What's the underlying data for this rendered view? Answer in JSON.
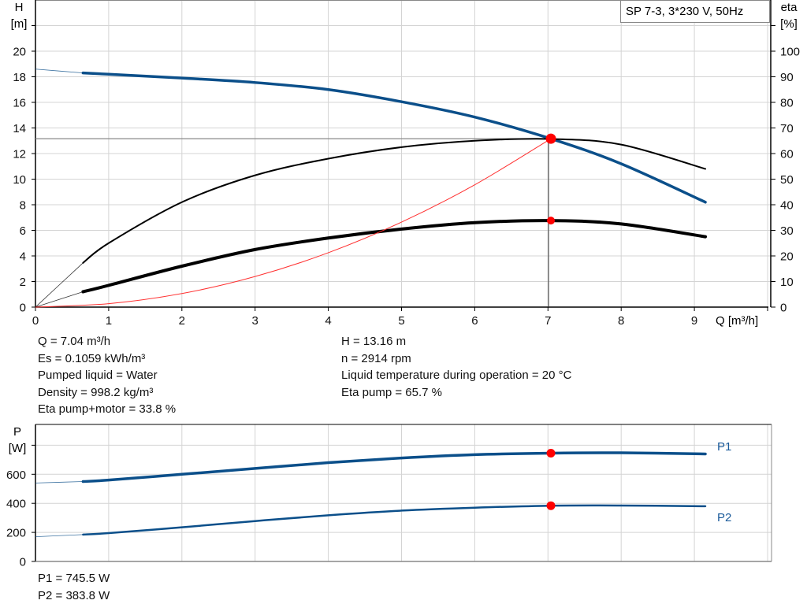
{
  "chart_data": [
    {
      "type": "line",
      "title": "SP 7-3, 3*230 V, 50Hz",
      "xlabel": "Q [m³/h]",
      "ylabel": [
        "H",
        "[m]"
      ],
      "y2label": [
        "eta",
        "[%]"
      ],
      "xlim": [
        0,
        10
      ],
      "ylim": [
        0,
        24
      ],
      "y2lim": [
        0,
        120
      ],
      "grid": true,
      "x_ticks": [
        "0",
        "1",
        "2",
        "3",
        "4",
        "5",
        "6",
        "7",
        "8",
        "9"
      ],
      "y_ticks": [
        "0",
        "2",
        "4",
        "6",
        "8",
        "10",
        "12",
        "14",
        "16",
        "18",
        "20"
      ],
      "y2_ticks": [
        "0",
        "10",
        "20",
        "30",
        "40",
        "50",
        "60",
        "70",
        "80",
        "90",
        "100"
      ],
      "series": [
        {
          "axis": "left",
          "color": "#0b4f8a",
          "width": 3.5,
          "x": [
            0,
            0.65,
            1,
            2,
            3,
            4,
            5,
            6,
            7.04,
            8,
            9.15
          ],
          "y": [
            18.6,
            18.3,
            18.2,
            17.9,
            17.55,
            17.0,
            16.05,
            14.85,
            13.16,
            11.2,
            8.2
          ]
        },
        {
          "axis": "right",
          "color": "#000000",
          "width": 2,
          "x": [
            0,
            0.65,
            1,
            2,
            3,
            4,
            5,
            6,
            7.04,
            8,
            9.15
          ],
          "y": [
            0,
            17.3,
            25,
            41,
            51.5,
            58,
            62.5,
            65,
            65.7,
            63.5,
            54
          ]
        },
        {
          "axis": "right",
          "color": "#000000",
          "width": 4,
          "x": [
            0,
            0.65,
            1,
            2,
            3,
            4,
            5,
            6,
            7.04,
            8,
            9.15
          ],
          "y": [
            0,
            6,
            8.5,
            16,
            22.5,
            27,
            30.5,
            33,
            33.8,
            32.5,
            27.5
          ]
        },
        {
          "axis": "left",
          "color": "#ff3030",
          "width": 1,
          "x": [
            0,
            1,
            2,
            3,
            4,
            5,
            6,
            7.04
          ],
          "y": [
            0,
            0.27,
            1.06,
            2.39,
            4.25,
            6.64,
            9.56,
            13.16
          ]
        }
      ],
      "operating_point": {
        "Q": 7.04,
        "H": 13.16,
        "eta_pump": 65.7,
        "eta_pump_motor": 33.8
      },
      "point_color": "#ff0000"
    },
    {
      "type": "line",
      "ylabel": [
        "P",
        "[W]"
      ],
      "xlim": [
        0,
        10
      ],
      "ylim": [
        0,
        943
      ],
      "grid": true,
      "y_ticks": [
        "0",
        "200",
        "400",
        "600"
      ],
      "series": [
        {
          "name": "P1",
          "color": "#0b4f8a",
          "width": 3.5,
          "x": [
            0,
            0.65,
            1,
            2,
            3,
            4,
            5,
            6,
            7.04,
            8,
            9.15
          ],
          "y": [
            540,
            550,
            560,
            600,
            640,
            680,
            712,
            735,
            745.5,
            748,
            740
          ]
        },
        {
          "name": "P2",
          "color": "#0b4f8a",
          "width": 2.5,
          "x": [
            0,
            0.65,
            1,
            2,
            3,
            4,
            5,
            6,
            7.04,
            8,
            9.15
          ],
          "y": [
            170,
            185,
            195,
            235,
            278,
            318,
            350,
            370,
            383.8,
            385,
            380
          ]
        }
      ],
      "operating_point": {
        "Q": 7.04,
        "P1": 745.5,
        "P2": 383.8
      }
    }
  ],
  "info_left": [
    "Q = 7.04 m³/h",
    "Es = 0.1059 kWh/m³",
    "Pumped liquid = Water",
    "Density = 998.2 kg/m³",
    "Eta pump+motor = 33.8 %"
  ],
  "info_right": [
    "H = 13.16 m",
    "n = 2914 rpm",
    "Liquid temperature during operation = 20 °C",
    "Eta pump = 65.7 %"
  ],
  "power_info": [
    "P1 = 745.5 W",
    "P2 = 383.8 W"
  ]
}
